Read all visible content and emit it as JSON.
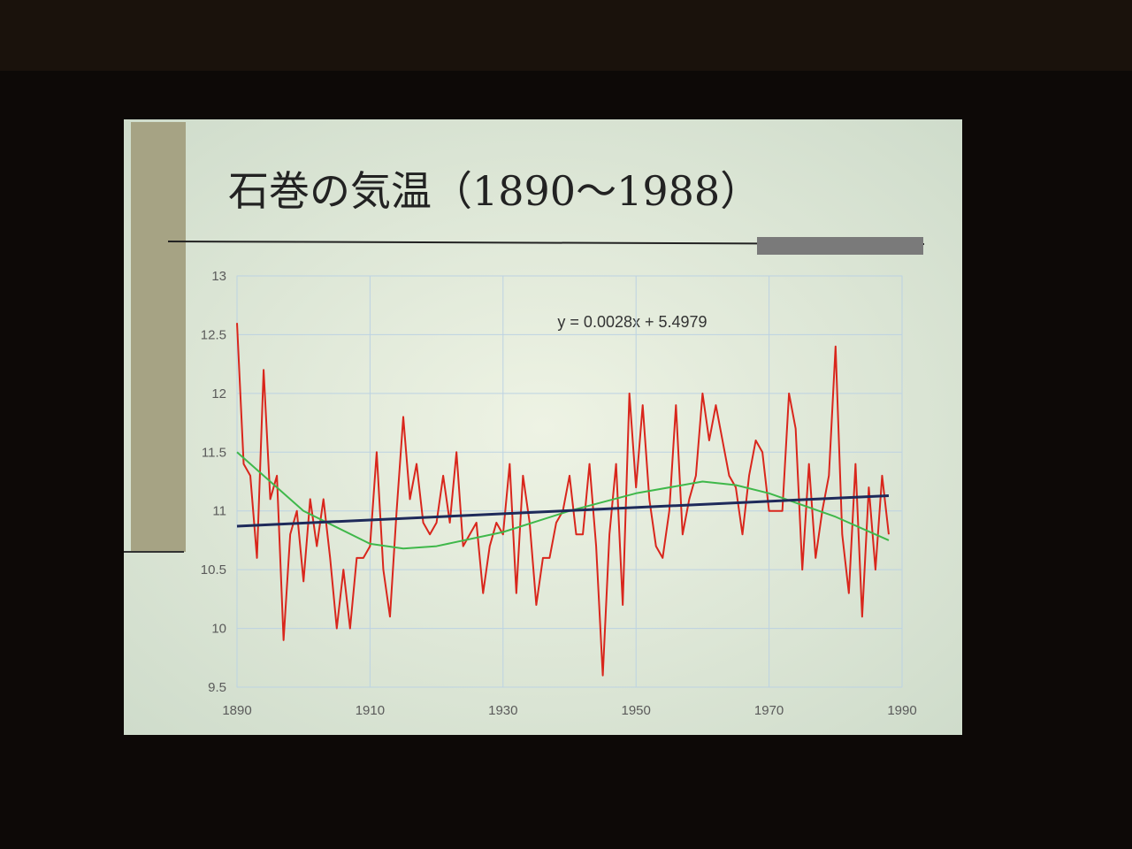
{
  "chart_data": {
    "type": "line",
    "title": "石巻の気温（1890〜1988）",
    "annotation": "y = 0.0028x + 5.4979",
    "xlim": [
      1890,
      1990
    ],
    "xticks": [
      1890,
      1910,
      1930,
      1950,
      1970,
      1990
    ],
    "ylim": [
      9.5,
      13
    ],
    "yticks": [
      9.5,
      10,
      10.5,
      11,
      11.5,
      12,
      12.5,
      13
    ],
    "grid": true,
    "series": [
      {
        "color": "#d9261c",
        "x": [
          1890,
          1891,
          1892,
          1893,
          1894,
          1895,
          1896,
          1897,
          1898,
          1899,
          1900,
          1901,
          1902,
          1903,
          1904,
          1905,
          1906,
          1907,
          1908,
          1909,
          1910,
          1911,
          1912,
          1913,
          1914,
          1915,
          1916,
          1917,
          1918,
          1919,
          1920,
          1921,
          1922,
          1923,
          1924,
          1925,
          1926,
          1927,
          1928,
          1929,
          1930,
          1931,
          1932,
          1933,
          1934,
          1935,
          1936,
          1937,
          1938,
          1939,
          1940,
          1941,
          1942,
          1943,
          1944,
          1945,
          1946,
          1947,
          1948,
          1949,
          1950,
          1951,
          1952,
          1953,
          1954,
          1955,
          1956,
          1957,
          1958,
          1959,
          1960,
          1961,
          1962,
          1963,
          1964,
          1965,
          1966,
          1967,
          1968,
          1969,
          1970,
          1971,
          1972,
          1973,
          1974,
          1975,
          1976,
          1977,
          1978,
          1979,
          1980,
          1981,
          1982,
          1983,
          1984,
          1985,
          1986,
          1987,
          1988
        ],
        "values": [
          12.6,
          11.4,
          11.3,
          10.6,
          12.2,
          11.1,
          11.3,
          9.9,
          10.8,
          11.0,
          10.4,
          11.1,
          10.7,
          11.1,
          10.6,
          10.0,
          10.5,
          10.0,
          10.6,
          10.6,
          10.7,
          11.5,
          10.5,
          10.1,
          11.0,
          11.8,
          11.1,
          11.4,
          10.9,
          10.8,
          10.9,
          11.3,
          10.9,
          11.5,
          10.7,
          10.8,
          10.9,
          10.3,
          10.7,
          10.9,
          10.8,
          11.4,
          10.3,
          11.3,
          10.9,
          10.2,
          10.6,
          10.6,
          10.9,
          11.0,
          11.3,
          10.8,
          10.8,
          11.4,
          10.7,
          9.6,
          10.8,
          11.4,
          10.2,
          12.0,
          11.2,
          11.9,
          11.1,
          10.7,
          10.6,
          11.0,
          11.9,
          10.8,
          11.1,
          11.3,
          12.0,
          11.6,
          11.9,
          11.6,
          11.3,
          11.2,
          10.8,
          11.3,
          11.6,
          11.5,
          11.0,
          11.0,
          11.0,
          12.0,
          11.7,
          10.5,
          11.4,
          10.6,
          11.0,
          11.3,
          12.4,
          10.8,
          10.3,
          11.4,
          10.1,
          11.2,
          10.5,
          11.3,
          10.8
        ]
      },
      {
        "color": "#3fb84a",
        "x": [
          1890,
          1900,
          1910,
          1915,
          1920,
          1930,
          1940,
          1950,
          1960,
          1965,
          1970,
          1980,
          1988
        ],
        "values": [
          11.5,
          11.0,
          10.72,
          10.68,
          10.7,
          10.82,
          11.0,
          11.15,
          11.25,
          11.22,
          11.15,
          10.95,
          10.75
        ]
      },
      {
        "color": "#1e2a5a",
        "x": [
          1890,
          1988
        ],
        "values": [
          10.87,
          11.13
        ]
      }
    ]
  }
}
